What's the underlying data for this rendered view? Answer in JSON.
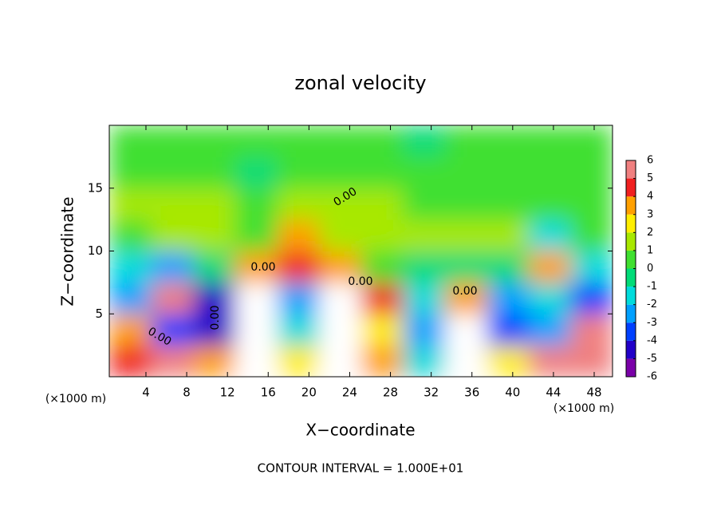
{
  "chart_data": {
    "type": "heatmap",
    "title": "zonal velocity",
    "x_label": "X−coordinate",
    "y_label": "Z−coordinate",
    "x_unit_label": "(×1000 m)",
    "y_unit_label": "(×1000 m)",
    "footer": "CONTOUR INTERVAL = 1.000E+01",
    "contour_labels": [
      "0.00",
      "0.00",
      "0.00",
      "0.00",
      "0.00",
      "0.00"
    ],
    "xlim": [
      0.4,
      49.8
    ],
    "xticks": [
      4,
      8,
      12,
      16,
      20,
      24,
      28,
      32,
      36,
      40,
      44,
      48
    ],
    "ylim": [
      0,
      20
    ],
    "yticks": [
      5,
      10,
      15
    ],
    "zlim": [
      -6,
      6
    ],
    "zticks": [
      -6,
      -5,
      -4,
      -3,
      -2,
      -1,
      0,
      1,
      2,
      3,
      4,
      5,
      6
    ],
    "colors": [
      "#7a00a8",
      "#2200c8",
      "#0040ff",
      "#00a0ff",
      "#00dcdc",
      "#00dc78",
      "#40e030",
      "#a8e800",
      "#ffee00",
      "#ffa000",
      "#f02020",
      "#f08080"
    ],
    "out_of_range_color": "#ffffff",
    "z": [
      [
        4,
        5,
        3,
        7,
        2,
        7,
        3,
        -2,
        7,
        2,
        5,
        5
      ],
      [
        3,
        -4,
        -5,
        7,
        -2,
        7,
        2,
        -3,
        7,
        -4,
        -3,
        6
      ],
      [
        -3,
        5,
        -5,
        7,
        -3,
        7,
        4,
        -2,
        3,
        -3,
        -2,
        -4
      ],
      [
        -2,
        -3,
        -1,
        3,
        4,
        3,
        0,
        -1,
        -1,
        -1,
        3,
        -2
      ],
      [
        0.5,
        1,
        1,
        0,
        3,
        1.5,
        1,
        1,
        1,
        1,
        -2,
        0.5
      ],
      [
        1,
        1,
        1,
        0.5,
        1,
        1,
        1,
        0.8,
        0.8,
        0.8,
        0.8,
        0.8
      ],
      [
        0.8,
        0.5,
        0.3,
        -0.3,
        0.2,
        0.5,
        0.5,
        0.5,
        0.5,
        0.5,
        0.5,
        0.5
      ],
      [
        0.3,
        0.3,
        0.5,
        0.5,
        0.5,
        0.5,
        0.5,
        -0.2,
        0.5,
        0.5,
        0.5,
        0.5
      ]
    ]
  }
}
